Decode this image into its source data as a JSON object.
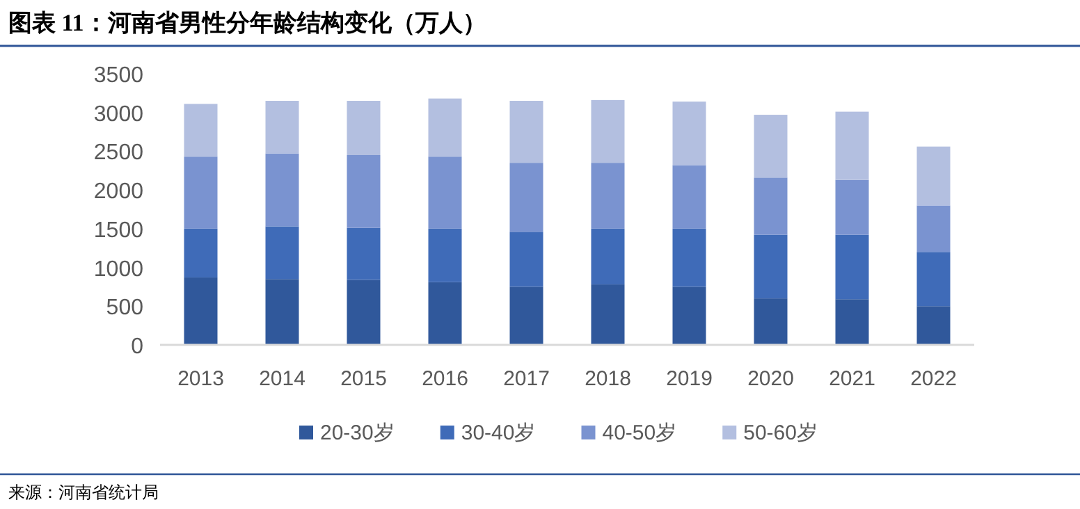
{
  "chart_data": {
    "type": "bar",
    "stacked": true,
    "title": "图表 11：河南省男性分年龄结构变化（万人）",
    "categories": [
      "2013",
      "2014",
      "2015",
      "2016",
      "2017",
      "2018",
      "2019",
      "2020",
      "2021",
      "2022"
    ],
    "series": [
      {
        "name": "20-30岁",
        "color": "#30589b",
        "values": [
          870,
          850,
          840,
          810,
          750,
          780,
          750,
          600,
          590,
          500
        ]
      },
      {
        "name": "30-40岁",
        "color": "#3f6bb8",
        "values": [
          630,
          680,
          670,
          690,
          710,
          720,
          750,
          820,
          830,
          700
        ]
      },
      {
        "name": "40-50岁",
        "color": "#7a93d0",
        "values": [
          930,
          940,
          940,
          930,
          890,
          850,
          820,
          740,
          710,
          600
        ]
      },
      {
        "name": "50-60岁",
        "color": "#b3bfe0",
        "values": [
          680,
          680,
          700,
          750,
          800,
          810,
          820,
          810,
          880,
          760
        ]
      }
    ],
    "ylim": [
      0,
      3500
    ],
    "yticks": [
      0,
      500,
      1000,
      1500,
      2000,
      2500,
      3000,
      3500
    ],
    "grid": false,
    "legend": "bottom",
    "annotations": [
      "来源：河南省统计局"
    ]
  }
}
